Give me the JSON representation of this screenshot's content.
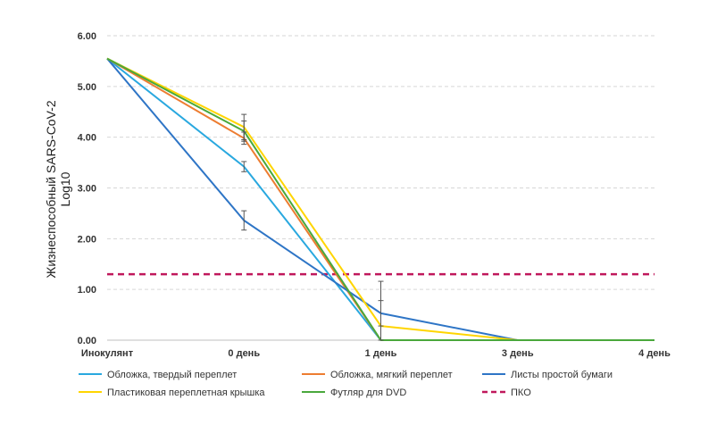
{
  "chart_data": {
    "type": "line",
    "title": "",
    "ylabel_lines": [
      "Жизнеспособный  SARS-CoV-2",
      "Log10"
    ],
    "xlabel": "",
    "categories": [
      "Инокулянт",
      "0 день",
      "1 день",
      "3 день",
      "4 день"
    ],
    "ylim": [
      0,
      6
    ],
    "yticks": [
      "0.00",
      "1.00",
      "2.00",
      "3.00",
      "4.00",
      "5.00",
      "6.00"
    ],
    "grid": true,
    "series": [
      {
        "name": "Обложка, твердый переплет",
        "color": "#29a8df",
        "values": [
          5.55,
          3.42,
          0.0,
          0.0,
          0.0
        ],
        "error": [
          null,
          0.1,
          null,
          null,
          null
        ]
      },
      {
        "name": "Обложка, мягкий переплет",
        "color": "#ed7d31",
        "values": [
          5.55,
          3.98,
          0.0,
          0.0,
          0.0
        ],
        "error": [
          null,
          0.12,
          null,
          null,
          null
        ]
      },
      {
        "name": "Листы простой бумаги",
        "color": "#2e75c6",
        "values": [
          5.55,
          2.36,
          0.53,
          0.0,
          0.0
        ],
        "error": [
          null,
          0.19,
          0.25,
          null,
          null
        ]
      },
      {
        "name": "Пластиковая переплетная крышка",
        "color": "#ffd500",
        "values": [
          5.55,
          4.2,
          0.28,
          0.0,
          0.0
        ],
        "error": [
          null,
          0.25,
          0.88,
          null,
          null
        ]
      },
      {
        "name": "Футляр для DVD",
        "color": "#4aa83c",
        "values": [
          5.55,
          4.12,
          0.0,
          0.0,
          0.0
        ],
        "error": [
          null,
          0.2,
          null,
          null,
          null
        ]
      }
    ],
    "reference_line": {
      "name": "ПКО",
      "value": 1.3,
      "color": "#c0185c",
      "style": "dashed"
    },
    "legend_position": "bottom"
  }
}
